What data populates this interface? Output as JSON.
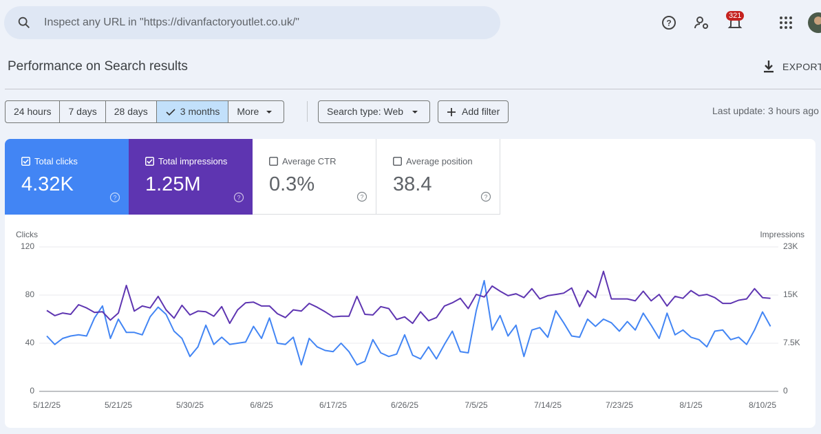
{
  "header": {
    "search_placeholder": "Inspect any URL in \"https://divanfactoryoutlet.co.uk/\"",
    "notifications": "321"
  },
  "page": {
    "title": "Performance on Search results",
    "export": "EXPORT"
  },
  "filters": {
    "ranges": [
      "24 hours",
      "7 days",
      "28 days",
      "3 months"
    ],
    "more": "More",
    "search_type": "Search type: Web",
    "add_filter": "Add filter",
    "last_update": "Last update: 3 hours ago"
  },
  "metrics": [
    {
      "label": "Total clicks",
      "value": "4.32K"
    },
    {
      "label": "Total impressions",
      "value": "1.25M"
    },
    {
      "label": "Average CTR",
      "value": "0.3%"
    },
    {
      "label": "Average position",
      "value": "38.4"
    }
  ],
  "chart_data": {
    "type": "line",
    "ylabel": "Clicks",
    "y2label": "Impressions",
    "categories": [
      "5/12/25",
      null,
      null,
      null,
      null,
      null,
      null,
      null,
      null,
      "5/21/25",
      null,
      null,
      null,
      null,
      null,
      null,
      null,
      null,
      "5/30/25",
      null,
      null,
      null,
      null,
      null,
      null,
      null,
      null,
      "6/8/25",
      null,
      null,
      null,
      null,
      null,
      null,
      null,
      null,
      "6/17/25",
      null,
      null,
      null,
      null,
      null,
      null,
      null,
      null,
      "6/26/25",
      null,
      null,
      null,
      null,
      null,
      null,
      null,
      null,
      "7/5/25",
      null,
      null,
      null,
      null,
      null,
      null,
      null,
      null,
      "7/14/25",
      null,
      null,
      null,
      null,
      null,
      null,
      null,
      null,
      "7/23/25",
      null,
      null,
      null,
      null,
      null,
      null,
      null,
      null,
      "8/1/25",
      null,
      null,
      null,
      null,
      null,
      null,
      null,
      null,
      "8/10/25",
      null
    ],
    "ylim": [
      0,
      120
    ],
    "yticks": [
      0,
      40,
      80,
      120
    ],
    "y2lim": [
      0,
      22500
    ],
    "y2ticks": [
      0,
      {
        "value": 7500,
        "label": "7.5K"
      },
      {
        "value": 15000,
        "label": "15K"
      },
      {
        "value": 22500,
        "label": "23K"
      }
    ],
    "grid": true,
    "series": [
      {
        "color": "#4285f4",
        "values": [
          46,
          39,
          44,
          46,
          47,
          46,
          61,
          71,
          44,
          60,
          49,
          49,
          47,
          62,
          70,
          64,
          50,
          44,
          29,
          37,
          55,
          39,
          45,
          39,
          40,
          41,
          54,
          44,
          61,
          40,
          39,
          45,
          22,
          44,
          37,
          34,
          33,
          40,
          33,
          22,
          25,
          43,
          32,
          29,
          31,
          47,
          30,
          27,
          37,
          27,
          39,
          50,
          33,
          32,
          67,
          92,
          51,
          63,
          46,
          55,
          29,
          51,
          53,
          45,
          67,
          57,
          46,
          45,
          60,
          54,
          60,
          57,
          50,
          58,
          51,
          65,
          55,
          44,
          65,
          47,
          51,
          45,
          43,
          37,
          50,
          51,
          43,
          45,
          39,
          51,
          66,
          54
        ]
      },
      {
        "color": "#5e35b1",
        "axis": "y2",
        "values": [
          12600,
          11800,
          12200,
          12000,
          13500,
          13000,
          12300,
          12400,
          11100,
          12200,
          16500,
          12500,
          13300,
          13000,
          14800,
          12700,
          11400,
          13400,
          11900,
          12500,
          12400,
          11700,
          13200,
          10600,
          12700,
          13800,
          13900,
          13300,
          13300,
          12100,
          11500,
          12700,
          12500,
          13700,
          13100,
          12400,
          11600,
          11700,
          11700,
          14800,
          12000,
          11900,
          13200,
          12900,
          11200,
          11600,
          10600,
          12400,
          11000,
          11500,
          13300,
          13800,
          14500,
          12900,
          15100,
          14700,
          16400,
          15600,
          14900,
          15200,
          14600,
          16000,
          14400,
          14900,
          15100,
          15300,
          16100,
          13200,
          15700,
          14600,
          18700,
          14400,
          14400,
          14400,
          14100,
          15600,
          14100,
          15100,
          13300,
          14800,
          14500,
          15700,
          14900,
          15100,
          14600,
          13700,
          13700,
          14200,
          14400,
          16000,
          14600,
          14500
        ]
      }
    ]
  }
}
